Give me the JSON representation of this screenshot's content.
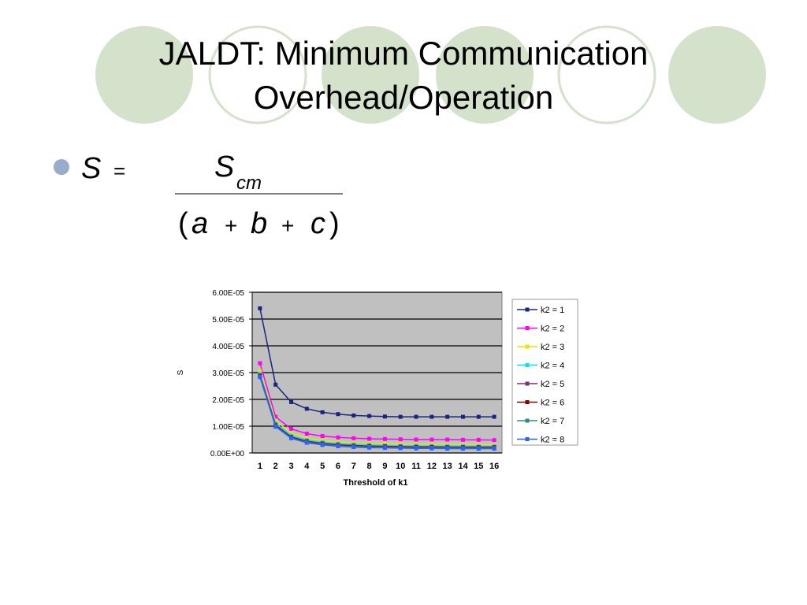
{
  "slide": {
    "title": "JALDT: Minimum Communication Overhead/Operation",
    "formula": {
      "lhs": "S",
      "equals": "=",
      "numerator": "S",
      "subscript": "cm",
      "denominator": [
        "(",
        "a",
        "+",
        "b",
        "+",
        "c",
        ")"
      ]
    }
  },
  "chart_data": {
    "type": "line",
    "x_label": "Threshold of k1",
    "y_label": "S",
    "categories": [
      1,
      2,
      3,
      4,
      5,
      6,
      7,
      8,
      9,
      10,
      11,
      12,
      13,
      14,
      15,
      16
    ],
    "ylim": [
      0,
      6e-05
    ],
    "yticks": [
      {
        "value": 0,
        "label": "0.00E+00"
      },
      {
        "value": 1e-05,
        "label": "1.00E-05"
      },
      {
        "value": 2e-05,
        "label": "2.00E-05"
      },
      {
        "value": 3e-05,
        "label": "3.00E-05"
      },
      {
        "value": 4e-05,
        "label": "4.00E-05"
      },
      {
        "value": 5e-05,
        "label": "5.00E-05"
      },
      {
        "value": 6e-05,
        "label": "6.00E-05"
      }
    ],
    "grid": true,
    "legend": "right",
    "series": [
      {
        "name": "k2 = 1",
        "color": "#1a237e",
        "values": [
          5.4e-05,
          2.55e-05,
          1.9e-05,
          1.65e-05,
          1.52e-05,
          1.45e-05,
          1.4e-05,
          1.38e-05,
          1.36e-05,
          1.35e-05,
          1.35e-05,
          1.35e-05,
          1.35e-05,
          1.35e-05,
          1.35e-05,
          1.35e-05
        ]
      },
      {
        "name": "k2 = 2",
        "color": "#ff00ff",
        "values": [
          3.35e-05,
          1.35e-05,
          9e-06,
          7.2e-06,
          6.3e-06,
          5.8e-06,
          5.5e-06,
          5.3e-06,
          5.2e-06,
          5.1e-06,
          5e-06,
          5e-06,
          5e-06,
          4.9e-06,
          4.9e-06,
          4.8e-06
        ]
      },
      {
        "name": "k2 = 3",
        "color": "#e6e600",
        "values": [
          3.05e-05,
          1.2e-05,
          7.5e-06,
          5.5e-06,
          4.7e-06,
          4.2e-06,
          3.8e-06,
          3.6e-06,
          3.5e-06,
          3.4e-06,
          3.3e-06,
          3.3e-06,
          3.2e-06,
          3.2e-06,
          3.2e-06,
          3.1e-06
        ]
      },
      {
        "name": "k2 = 4",
        "color": "#00e5ee",
        "values": [
          2.95e-05,
          1.1e-05,
          6.5e-06,
          4.8e-06,
          4e-06,
          3.5e-06,
          3.2e-06,
          3e-06,
          2.8e-06,
          2.7e-06,
          2.7e-06,
          2.6e-06,
          2.6e-06,
          2.6e-06,
          2.5e-06,
          2.5e-06
        ]
      },
      {
        "name": "k2 = 5",
        "color": "#7b2f7b",
        "values": [
          2.9e-05,
          1.05e-05,
          6e-06,
          4.4e-06,
          3.6e-06,
          3.1e-06,
          2.8e-06,
          2.6e-06,
          2.5e-06,
          2.4e-06,
          2.3e-06,
          2.3e-06,
          2.2e-06,
          2.2e-06,
          2.2e-06,
          2.2e-06
        ]
      },
      {
        "name": "k2 = 6",
        "color": "#8b0000",
        "values": [
          2.87e-05,
          1.02e-05,
          5.8e-06,
          4.2e-06,
          3.4e-06,
          2.9e-06,
          2.6e-06,
          2.4e-06,
          2.3e-06,
          2.2e-06,
          2.1e-06,
          2.1e-06,
          2e-06,
          2e-06,
          2e-06,
          2e-06
        ]
      },
      {
        "name": "k2 = 7",
        "color": "#2e8b80",
        "values": [
          2.85e-05,
          1e-05,
          5.6e-06,
          4e-06,
          3.2e-06,
          2.7e-06,
          2.4e-06,
          2.2e-06,
          2.1e-06,
          2e-06,
          1.9e-06,
          1.9e-06,
          1.8e-06,
          1.8e-06,
          1.8e-06,
          1.8e-06
        ]
      },
      {
        "name": "k2 = 8",
        "color": "#2962ff",
        "values": [
          2.83e-05,
          9.8e-06,
          5.5e-06,
          3.8e-06,
          3e-06,
          2.5e-06,
          2.2e-06,
          2e-06,
          1.9e-06,
          1.8e-06,
          1.7e-06,
          1.7e-06,
          1.6e-06,
          1.6e-06,
          1.6e-06,
          1.6e-06
        ]
      }
    ]
  }
}
